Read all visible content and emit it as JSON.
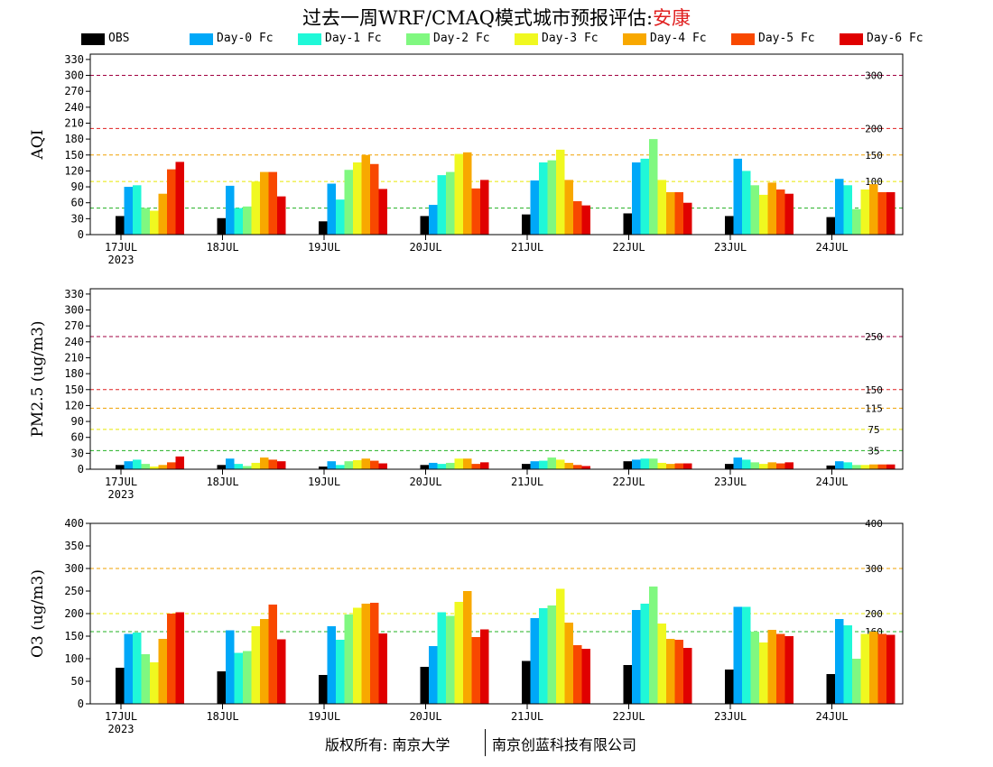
{
  "header": {
    "title_prefix": "过去一周WRF/CMAQ模式城市预报评估:",
    "city": "安康"
  },
  "legend": [
    {
      "label": "OBS",
      "color": "#000000"
    },
    {
      "label": "Day-0 Fc",
      "color": "#00a8f8"
    },
    {
      "label": "Day-1 Fc",
      "color": "#20f8d8"
    },
    {
      "label": "Day-2 Fc",
      "color": "#80f880"
    },
    {
      "label": "Day-3 Fc",
      "color": "#f0f820"
    },
    {
      "label": "Day-4 Fc",
      "color": "#f8a800"
    },
    {
      "label": "Day-5 Fc",
      "color": "#f84800"
    },
    {
      "label": "Day-6 Fc",
      "color": "#e00000"
    }
  ],
  "footer": {
    "left": "版权所有: 南京大学",
    "right": "南京创蓝科技有限公司"
  },
  "chart_data": [
    {
      "type": "bar",
      "ylabel": "AQI",
      "ylim": [
        0,
        340
      ],
      "yticks": [
        0,
        30,
        60,
        90,
        120,
        150,
        180,
        210,
        240,
        270,
        300,
        330
      ],
      "categories": [
        "17JUL",
        "18JUL",
        "19JUL",
        "20JUL",
        "21JUL",
        "22JUL",
        "23JUL",
        "24JUL"
      ],
      "first_category_sublabel": "2023",
      "thresholds": [
        {
          "value": 50,
          "label": "50",
          "color": "#20b020"
        },
        {
          "value": 100,
          "label": "100",
          "color": "#e8e800"
        },
        {
          "value": 150,
          "label": "150",
          "color": "#f0a000"
        },
        {
          "value": 200,
          "label": "200",
          "color": "#e02020"
        },
        {
          "value": 300,
          "label": "300",
          "color": "#a00040"
        }
      ],
      "series": [
        {
          "name": "OBS",
          "values": [
            35,
            31,
            25,
            35,
            38,
            40,
            35,
            33
          ]
        },
        {
          "name": "Day-0 Fc",
          "values": [
            90,
            92,
            96,
            56,
            102,
            136,
            143,
            105
          ]
        },
        {
          "name": "Day-1 Fc",
          "values": [
            93,
            50,
            66,
            112,
            136,
            143,
            120,
            93
          ]
        },
        {
          "name": "Day-2 Fc",
          "values": [
            50,
            53,
            122,
            118,
            140,
            180,
            93,
            48
          ]
        },
        {
          "name": "Day-3 Fc",
          "values": [
            45,
            100,
            136,
            152,
            160,
            103,
            75,
            85
          ]
        },
        {
          "name": "Day-4 Fc",
          "values": [
            77,
            118,
            150,
            155,
            103,
            80,
            98,
            95
          ]
        },
        {
          "name": "Day-5 Fc",
          "values": [
            123,
            118,
            133,
            87,
            63,
            80,
            85,
            80
          ]
        },
        {
          "name": "Day-6 Fc",
          "values": [
            137,
            72,
            86,
            103,
            55,
            60,
            77,
            80
          ]
        }
      ]
    },
    {
      "type": "bar",
      "ylabel": "PM2.5 (ug/m3)",
      "ylim": [
        0,
        340
      ],
      "yticks": [
        0,
        30,
        60,
        90,
        120,
        150,
        180,
        210,
        240,
        270,
        300,
        330
      ],
      "categories": [
        "17JUL",
        "18JUL",
        "19JUL",
        "20JUL",
        "21JUL",
        "22JUL",
        "23JUL",
        "24JUL"
      ],
      "first_category_sublabel": "2023",
      "thresholds": [
        {
          "value": 35,
          "label": "35",
          "color": "#20b020"
        },
        {
          "value": 75,
          "label": "75",
          "color": "#e8e800"
        },
        {
          "value": 115,
          "label": "115",
          "color": "#f0a000"
        },
        {
          "value": 150,
          "label": "150",
          "color": "#e02020"
        },
        {
          "value": 250,
          "label": "250",
          "color": "#a00040"
        }
      ],
      "series": [
        {
          "name": "OBS",
          "values": [
            8,
            8,
            5,
            8,
            10,
            15,
            10,
            7
          ]
        },
        {
          "name": "Day-0 Fc",
          "values": [
            15,
            20,
            15,
            12,
            15,
            18,
            22,
            15
          ]
        },
        {
          "name": "Day-1 Fc",
          "values": [
            18,
            10,
            8,
            10,
            16,
            20,
            18,
            13
          ]
        },
        {
          "name": "Day-2 Fc",
          "values": [
            10,
            6,
            15,
            12,
            22,
            20,
            13,
            8
          ]
        },
        {
          "name": "Day-3 Fc",
          "values": [
            5,
            12,
            17,
            20,
            18,
            12,
            10,
            8
          ]
        },
        {
          "name": "Day-4 Fc",
          "values": [
            8,
            22,
            20,
            20,
            12,
            10,
            13,
            9
          ]
        },
        {
          "name": "Day-5 Fc",
          "values": [
            13,
            18,
            16,
            10,
            8,
            11,
            11,
            9
          ]
        },
        {
          "name": "Day-6 Fc",
          "values": [
            24,
            15,
            11,
            13,
            6,
            11,
            13,
            9
          ]
        }
      ]
    },
    {
      "type": "bar",
      "ylabel": "O3 (ug/m3)",
      "ylim": [
        0,
        400
      ],
      "yticks": [
        0,
        50,
        100,
        150,
        200,
        250,
        300,
        350,
        400
      ],
      "categories": [
        "17JUL",
        "18JUL",
        "19JUL",
        "20JUL",
        "21JUL",
        "22JUL",
        "23JUL",
        "24JUL"
      ],
      "first_category_sublabel": "2023",
      "thresholds": [
        {
          "value": 160,
          "label": "160",
          "color": "#20b020"
        },
        {
          "value": 200,
          "label": "200",
          "color": "#e8e800"
        },
        {
          "value": 300,
          "label": "300",
          "color": "#f0a000"
        },
        {
          "value": 400,
          "label": "400",
          "color": "#e02020"
        }
      ],
      "series": [
        {
          "name": "OBS",
          "values": [
            80,
            72,
            64,
            82,
            95,
            86,
            76,
            66
          ]
        },
        {
          "name": "Day-0 Fc",
          "values": [
            155,
            163,
            172,
            128,
            190,
            208,
            215,
            188
          ]
        },
        {
          "name": "Day-1 Fc",
          "values": [
            158,
            113,
            142,
            203,
            212,
            222,
            215,
            174
          ]
        },
        {
          "name": "Day-2 Fc",
          "values": [
            110,
            117,
            198,
            195,
            218,
            260,
            160,
            100
          ]
        },
        {
          "name": "Day-3 Fc",
          "values": [
            92,
            172,
            213,
            226,
            255,
            178,
            136,
            155
          ]
        },
        {
          "name": "Day-4 Fc",
          "values": [
            144,
            188,
            222,
            250,
            180,
            144,
            164,
            160
          ]
        },
        {
          "name": "Day-5 Fc",
          "values": [
            200,
            220,
            224,
            148,
            130,
            142,
            155,
            155
          ]
        },
        {
          "name": "Day-6 Fc",
          "values": [
            203,
            143,
            156,
            165,
            122,
            124,
            150,
            153
          ]
        }
      ]
    }
  ]
}
